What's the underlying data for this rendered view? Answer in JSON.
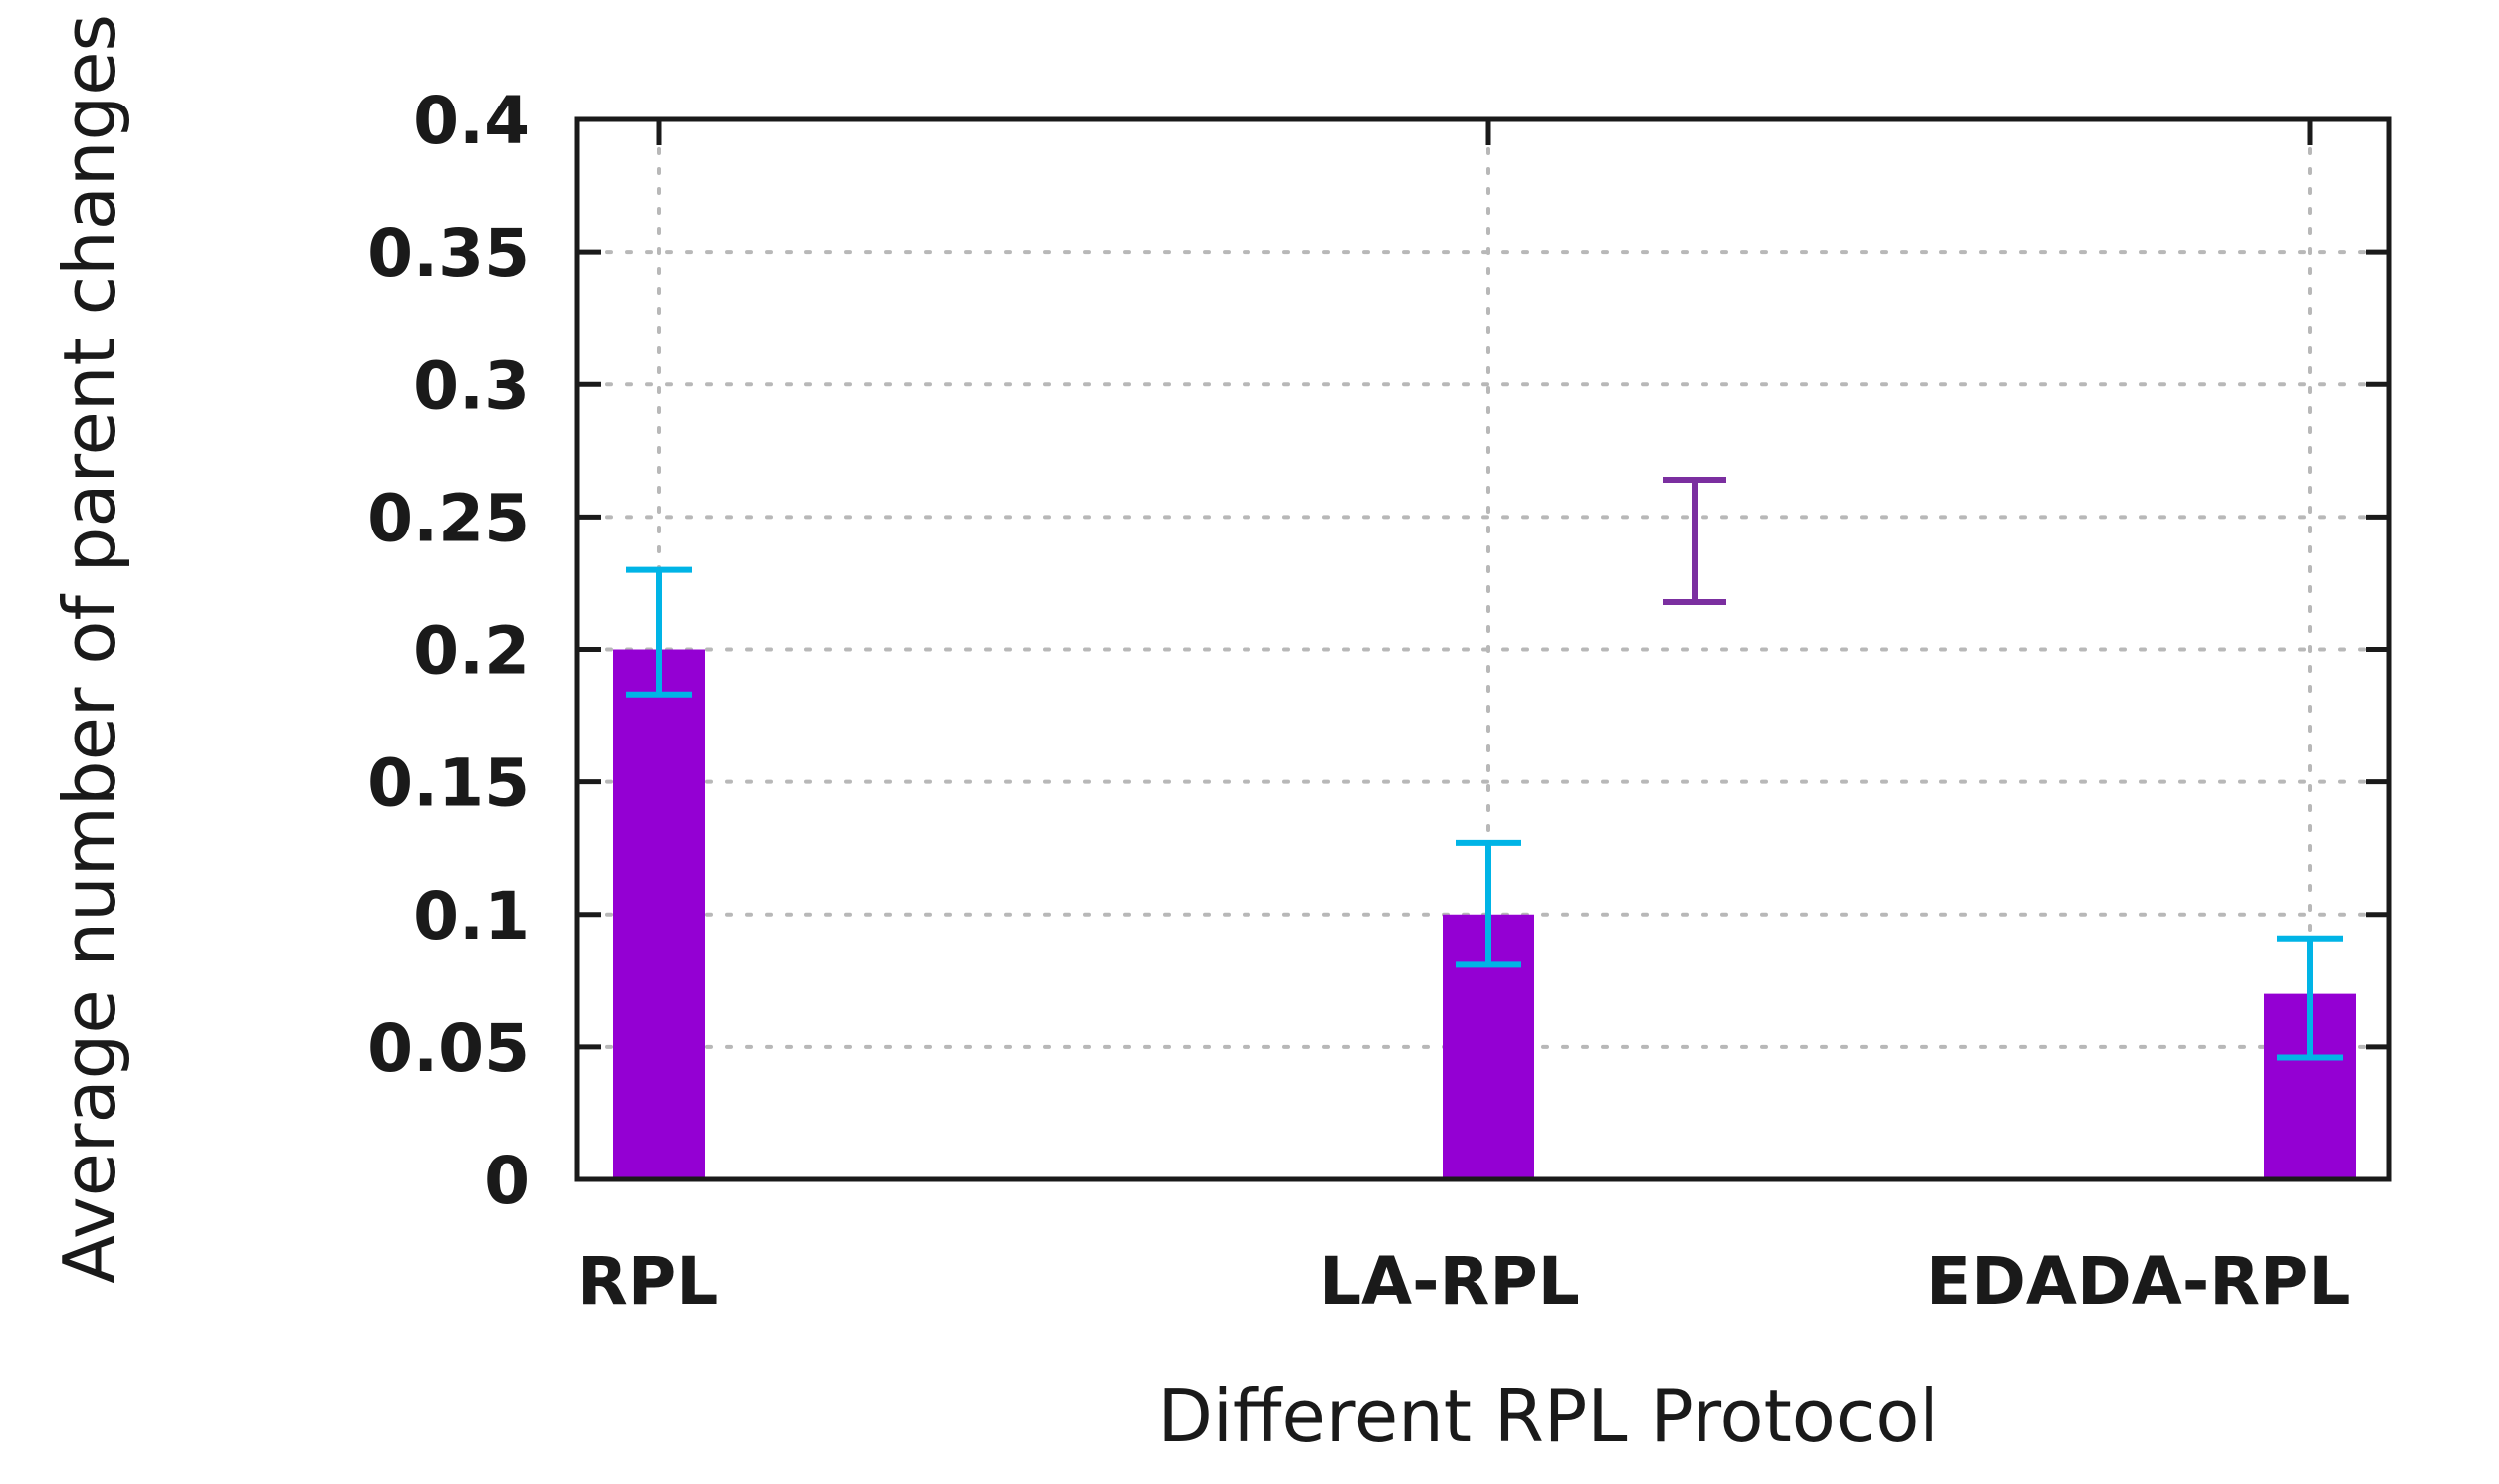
{
  "chart_data": {
    "type": "bar",
    "title": "",
    "xlabel": "Different RPL Protocol",
    "ylabel": "Average number of parent changes",
    "categories": [
      "RPL",
      "LA-RPL",
      "EDADA-RPL"
    ],
    "values": [
      0.2,
      0.1,
      0.07
    ],
    "error_bars": [
      {
        "low": 0.183,
        "high": 0.23
      },
      {
        "low": 0.081,
        "high": 0.127
      },
      {
        "low": 0.046,
        "high": 0.091
      }
    ],
    "ylim": [
      0,
      0.4
    ],
    "yticks": [
      "0",
      "0.05",
      "0.1",
      "0.15",
      "0.2",
      "0.25",
      "0.3",
      "0.35",
      "0.4"
    ],
    "grid": true,
    "legend_position": "upper-right",
    "legend_marker": "error-bar",
    "colors": {
      "bar": "#9400d3",
      "error_bar": "#00b4e6",
      "legend_marker": "#7b2fa0",
      "axis": "#1a1a1a",
      "grid": "#b8b8b8"
    }
  }
}
